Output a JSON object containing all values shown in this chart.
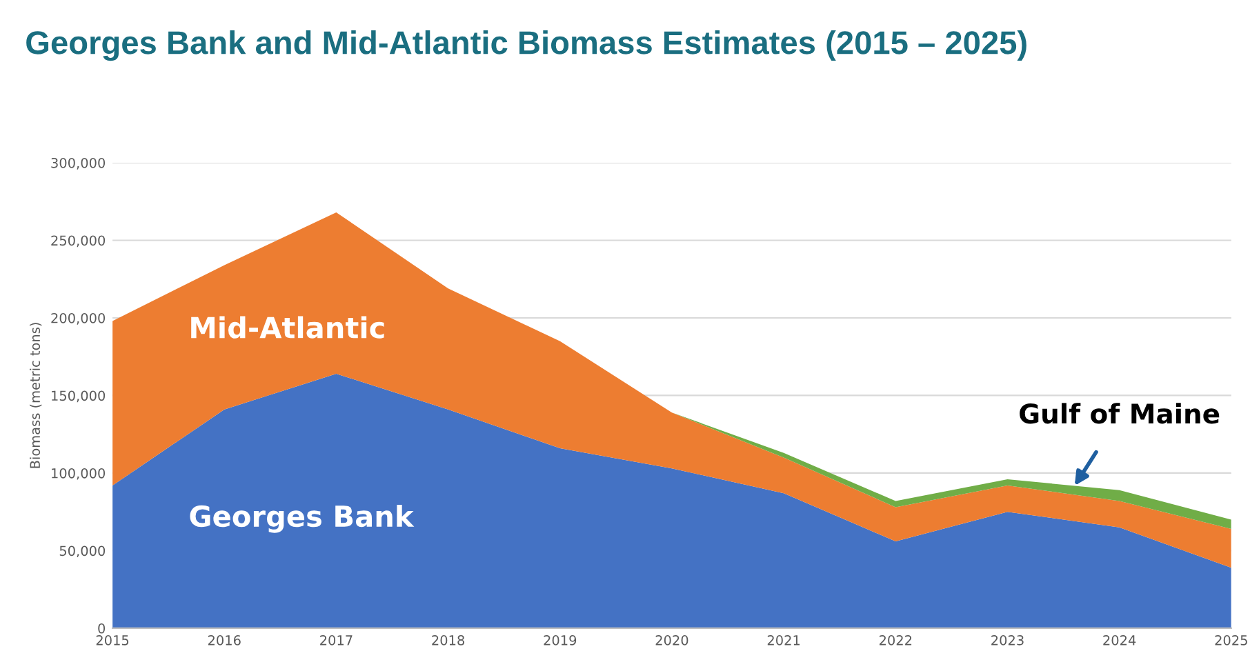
{
  "chart_data": {
    "type": "area",
    "stacked": true,
    "title": "Georges Bank and Mid-Atlantic Biomass Estimates (2015 – 2025)",
    "ylabel": "Biomass (metric tons)",
    "x": [
      2015,
      2016,
      2017,
      2018,
      2019,
      2020,
      2021,
      2022,
      2023,
      2024,
      2025
    ],
    "series": [
      {
        "name": "Georges Bank",
        "color": "#4472c4",
        "values": [
          92000,
          141000,
          164000,
          141000,
          116000,
          103000,
          87000,
          56000,
          75000,
          65000,
          39000
        ]
      },
      {
        "name": "Mid-Atlantic",
        "color": "#ed7d31",
        "values": [
          106000,
          93000,
          104000,
          78000,
          69000,
          36000,
          23000,
          22000,
          17000,
          17000,
          25000
        ]
      },
      {
        "name": "Gulf of Maine",
        "color": "#70ad47",
        "values": [
          0,
          0,
          0,
          0,
          0,
          0,
          3000,
          4000,
          4000,
          7000,
          6000
        ]
      }
    ],
    "xlim": [
      2015,
      2025
    ],
    "xticks": [
      2015,
      2016,
      2017,
      2018,
      2019,
      2020,
      2021,
      2022,
      2023,
      2024,
      2025
    ],
    "ylim": [
      0,
      300000
    ],
    "yticks": [
      0,
      {
        "value": 50000,
        "label": "50,000"
      },
      {
        "value": 100000,
        "label": "100,000"
      },
      {
        "value": 150000,
        "label": "150,000"
      },
      {
        "value": 200000,
        "label": "200,000"
      },
      {
        "value": 250000,
        "label": "250,000"
      },
      {
        "value": 300000,
        "label": "300,000"
      }
    ],
    "grid": "y",
    "legend": false
  }
}
